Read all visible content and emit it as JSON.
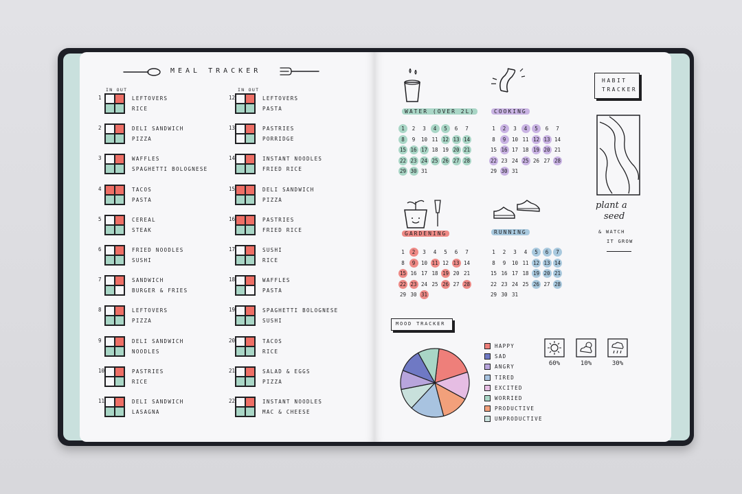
{
  "meal_tracker": {
    "title": "MEAL TRACKER",
    "col_header": "IN OUT",
    "colors": {
      "in": "#ee6f66",
      "out": "#a9d6c6"
    },
    "days": [
      {
        "n": "1",
        "a": "LEFTOVERS",
        "b": "RICE",
        "fill": [
          0,
          1,
          2,
          2
        ]
      },
      {
        "n": "2",
        "a": "DELI SANDWICH",
        "b": "PIZZA",
        "fill": [
          0,
          1,
          2,
          2
        ]
      },
      {
        "n": "3",
        "a": "WAFFLES",
        "b": "SPAGHETTI BOLOGNESE",
        "fill": [
          0,
          1,
          2,
          2
        ]
      },
      {
        "n": "4",
        "a": "TACOS",
        "b": "PASTA",
        "fill": [
          1,
          1,
          2,
          2
        ]
      },
      {
        "n": "5",
        "a": "CEREAL",
        "b": "STEAK",
        "fill": [
          0,
          1,
          2,
          2
        ]
      },
      {
        "n": "6",
        "a": "FRIED NOODLES",
        "b": "SUSHI",
        "fill": [
          0,
          1,
          2,
          2
        ]
      },
      {
        "n": "7",
        "a": "SANDWICH",
        "b": "BURGER & FRIES",
        "fill": [
          0,
          1,
          2,
          0
        ]
      },
      {
        "n": "8",
        "a": "LEFTOVERS",
        "b": "PIZZA",
        "fill": [
          0,
          1,
          2,
          2
        ]
      },
      {
        "n": "9",
        "a": "DELI SANDWICH",
        "b": "NOODLES",
        "fill": [
          0,
          1,
          2,
          2
        ]
      },
      {
        "n": "10",
        "a": "PASTRIES",
        "b": "RICE",
        "fill": [
          0,
          1,
          0,
          2
        ]
      },
      {
        "n": "11",
        "a": "DELI SANDWICH",
        "b": "LASAGNA",
        "fill": [
          0,
          1,
          2,
          2
        ]
      },
      {
        "n": "12",
        "a": "LEFTOVERS",
        "b": "PASTA",
        "fill": [
          0,
          1,
          2,
          2
        ]
      },
      {
        "n": "13",
        "a": "PASTRIES",
        "b": "PORRIDGE",
        "fill": [
          0,
          1,
          0,
          2
        ]
      },
      {
        "n": "14",
        "a": "INSTANT NOODLES",
        "b": "FRIED RICE",
        "fill": [
          0,
          1,
          2,
          2
        ]
      },
      {
        "n": "15",
        "a": "DELI SANDWICH",
        "b": "PIZZA",
        "fill": [
          1,
          1,
          2,
          2
        ]
      },
      {
        "n": "16",
        "a": "PASTRIES",
        "b": "FRIED RICE",
        "fill": [
          1,
          1,
          2,
          2
        ]
      },
      {
        "n": "17",
        "a": "SUSHI",
        "b": "RICE",
        "fill": [
          0,
          1,
          2,
          2
        ]
      },
      {
        "n": "18",
        "a": "WAFFLES",
        "b": "PASTA",
        "fill": [
          0,
          1,
          2,
          0
        ]
      },
      {
        "n": "19",
        "a": "SPAGHETTI BOLOGNESE",
        "b": "SUSHI",
        "fill": [
          0,
          1,
          2,
          2
        ]
      },
      {
        "n": "20",
        "a": "TACOS",
        "b": "RICE",
        "fill": [
          0,
          1,
          2,
          2
        ]
      },
      {
        "n": "21",
        "a": "SALAD & EGGS",
        "b": "PIZZA",
        "fill": [
          0,
          1,
          2,
          2
        ]
      },
      {
        "n": "22",
        "a": "INSTANT NOODLES",
        "b": "MAC & CHEESE",
        "fill": [
          0,
          1,
          2,
          2
        ]
      }
    ]
  },
  "habit_tracker": {
    "title_line1": "HABIT",
    "title_line2": "TRACKER",
    "note_line1": "plant a",
    "note_line2": "seed",
    "note_line3": "& WATCH",
    "note_line4": "IT GROW",
    "calendars": [
      {
        "key": "water",
        "label": "WATER (OVER 2L)",
        "color": "#a9d6c6",
        "days": [
          "1",
          "2",
          "3",
          "4",
          "5",
          "6",
          "7",
          "8",
          "9",
          "10",
          "11",
          "12",
          "13",
          "14",
          "15",
          "16",
          "17",
          "18",
          "19",
          "20",
          "21",
          "22",
          "23",
          "24",
          "25",
          "26",
          "27",
          "28",
          "29",
          "30",
          "31"
        ],
        "marked": [
          1,
          4,
          5,
          8,
          12,
          13,
          14,
          15,
          16,
          17,
          20,
          21,
          22,
          23,
          24,
          25,
          26,
          27,
          28,
          29,
          30
        ]
      },
      {
        "key": "cooking",
        "label": "COOKING",
        "color": "#c9b3e3",
        "days": [
          "1",
          "2",
          "3",
          "4",
          "5",
          "6",
          "7",
          "8",
          "9",
          "10",
          "11",
          "12",
          "13",
          "14",
          "15",
          "16",
          "17",
          "18",
          "19",
          "20",
          "21",
          "22",
          "23",
          "24",
          "25",
          "26",
          "27",
          "28",
          "29",
          "30",
          "31"
        ],
        "marked": [
          2,
          4,
          5,
          9,
          12,
          13,
          16,
          19,
          20,
          22,
          25,
          28,
          30
        ]
      },
      {
        "key": "gardening",
        "label": "GARDENING",
        "color": "#ee8a86",
        "days": [
          "1",
          "2",
          "3",
          "4",
          "5",
          "6",
          "7",
          "8",
          "9",
          "10",
          "11",
          "12",
          "13",
          "14",
          "15",
          "16",
          "17",
          "18",
          "19",
          "20",
          "21",
          "22",
          "23",
          "24",
          "25",
          "26",
          "27",
          "28",
          "29",
          "30",
          "31"
        ],
        "marked": [
          2,
          9,
          11,
          13,
          15,
          19,
          22,
          23,
          26,
          28,
          31
        ]
      },
      {
        "key": "running",
        "label": "RUNNING",
        "color": "#a9c9de",
        "days": [
          "1",
          "2",
          "3",
          "4",
          "5",
          "6",
          "7",
          "8",
          "9",
          "10",
          "11",
          "12",
          "13",
          "14",
          "15",
          "16",
          "17",
          "18",
          "19",
          "20",
          "21",
          "22",
          "23",
          "24",
          "25",
          "26",
          "27",
          "28",
          "29",
          "30",
          "31"
        ],
        "marked": [
          5,
          6,
          7,
          12,
          13,
          14,
          19,
          20,
          21,
          26,
          28
        ]
      }
    ]
  },
  "mood_tracker": {
    "title": "MOOD TRACKER",
    "legend": [
      {
        "label": "HAPPY",
        "color": "#ee7f7a"
      },
      {
        "label": "SAD",
        "color": "#6f79c4"
      },
      {
        "label": "ANGRY",
        "color": "#b8a5dc"
      },
      {
        "label": "TIRED",
        "color": "#a8c3e0"
      },
      {
        "label": "EXCITED",
        "color": "#e6bde3"
      },
      {
        "label": "WORRIED",
        "color": "#a9d6c6"
      },
      {
        "label": "Productive",
        "color": "#f2a07b"
      },
      {
        "label": "UNPRODUCTIVE",
        "color": "#c8e0dc"
      }
    ],
    "pie_slices": [
      {
        "mood": "HAPPY",
        "pct": 18
      },
      {
        "mood": "EXCITED",
        "pct": 13
      },
      {
        "mood": "Productive",
        "pct": 13
      },
      {
        "mood": "TIRED",
        "pct": 16
      },
      {
        "mood": "UNPRODUCTIVE",
        "pct": 10
      },
      {
        "mood": "ANGRY",
        "pct": 9
      },
      {
        "mood": "SAD",
        "pct": 11
      },
      {
        "mood": "WORRIED",
        "pct": 10
      }
    ],
    "weather": [
      {
        "icon": "sun-icon",
        "value": "60%"
      },
      {
        "icon": "cloud-sun-icon",
        "value": "10%"
      },
      {
        "icon": "rain-cloud-icon",
        "value": "30%"
      }
    ]
  }
}
